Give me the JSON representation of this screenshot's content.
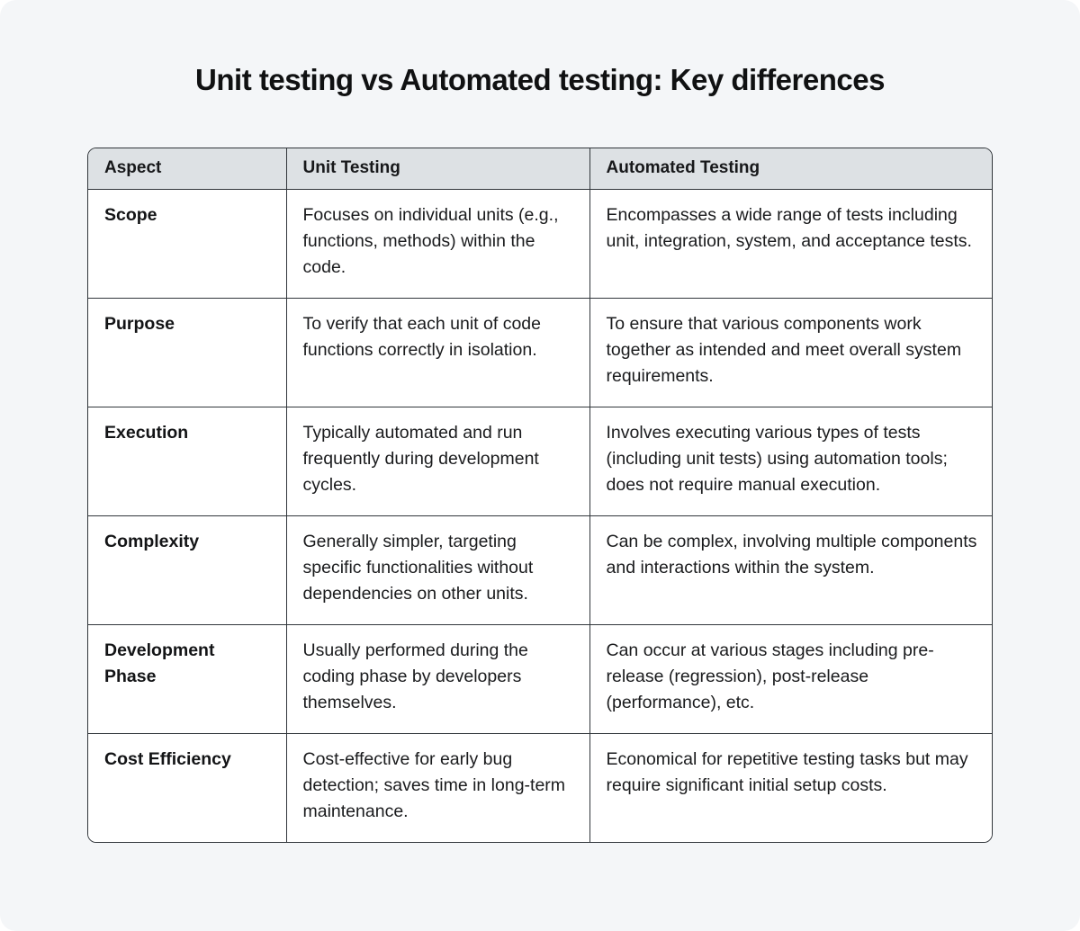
{
  "title": "Unit testing vs Automated testing: Key differences",
  "table": {
    "headers": [
      "Aspect",
      "Unit Testing",
      "Automated Testing"
    ],
    "rows": [
      {
        "aspect": "Scope",
        "unit": "Focuses on individual units (e.g., functions, methods) within the code.",
        "automated": "Encompasses a wide range of tests including unit, integration, system, and acceptance tests."
      },
      {
        "aspect": "Purpose",
        "unit": "To verify that each unit of code functions correctly in isolation.",
        "automated": "To ensure that various components work together as intended and meet overall system requirements."
      },
      {
        "aspect": "Execution",
        "unit": "Typically automated and run frequently during development cycles.",
        "automated": "Involves executing various types of tests (including unit tests) using automation tools; does not require manual execution."
      },
      {
        "aspect": "Complexity",
        "unit": "Generally simpler, targeting specific functionalities without dependencies on other units.",
        "automated": "Can be complex, involving multiple components and interactions within the system."
      },
      {
        "aspect": "Development Phase",
        "unit": "Usually performed during the coding phase by developers themselves.",
        "automated": "Can occur at various stages including pre-release (regression), post-release (performance), etc."
      },
      {
        "aspect": "Cost Efficiency",
        "unit": "Cost-effective for early bug detection; saves time in long-term maintenance.",
        "automated": "Economical for repetitive testing tasks but may require significant initial setup costs."
      }
    ]
  },
  "colors": {
    "page_bg": "#f4f6f8",
    "header_bg": "#dde1e4",
    "border": "#31363b",
    "text": "#141517"
  }
}
